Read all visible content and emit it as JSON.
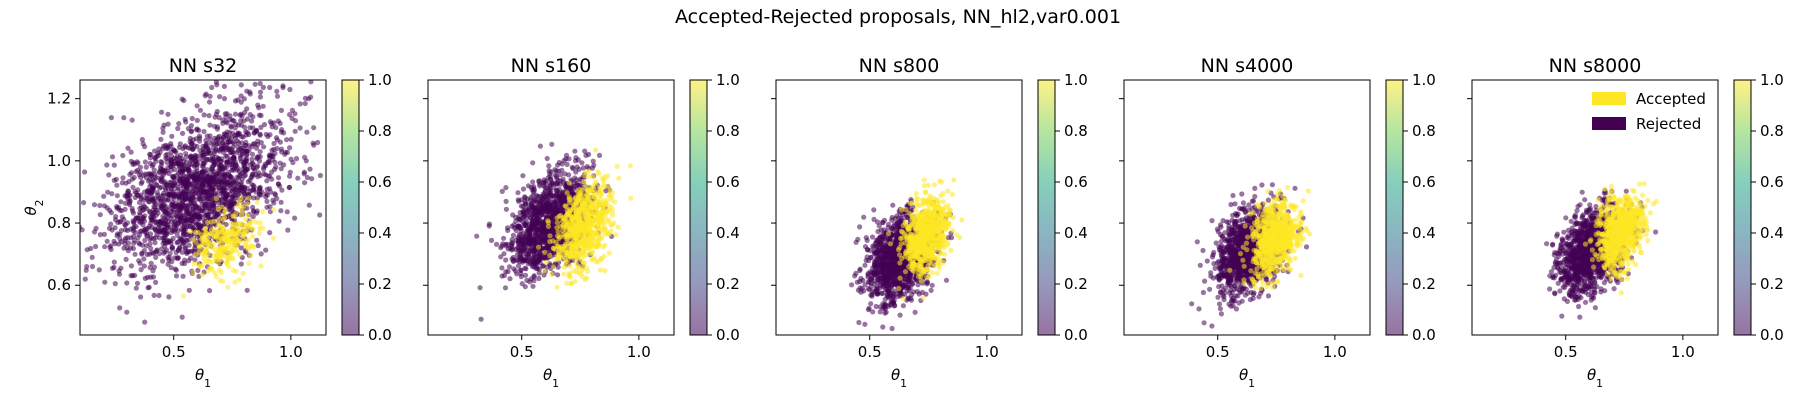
{
  "figure": {
    "suptitle": "Accepted-Rejected proposals, NN_hl2,var0.001"
  },
  "colors": {
    "accepted": "#fde725",
    "rejected": "#440154",
    "colormap": [
      "#440154",
      "#414487",
      "#2a788e",
      "#22a884",
      "#7ad151",
      "#fde725"
    ]
  },
  "chart_data": [
    {
      "type": "scatter",
      "title": "NN s32",
      "xlabel": "θ1",
      "ylabel": "θ2",
      "xlim": [
        0.1,
        1.15
      ],
      "ylim": [
        0.44,
        1.26
      ],
      "xticks": [
        0.5,
        1.0
      ],
      "xtick_labels": [
        "0.5",
        "1.0"
      ],
      "yticks": [
        0.6,
        0.8,
        1.0,
        1.2
      ],
      "ytick_labels": [
        "0.6",
        "0.8",
        "1.0",
        "1.2"
      ],
      "colorbar": {
        "ticks": [
          0.0,
          0.2,
          0.4,
          0.6,
          0.8,
          1.0
        ],
        "tick_labels": [
          "0.0",
          "0.2",
          "0.4",
          "0.6",
          "0.8",
          "1.0"
        ]
      },
      "series": [
        {
          "name": "Rejected",
          "color": "#440154",
          "cloud": {
            "center": [
              0.6,
              0.9
            ],
            "spread": [
              0.19,
              0.13
            ],
            "corr": 0.45,
            "count": 1900
          }
        },
        {
          "name": "Accepted",
          "color": "#fde725",
          "cloud": {
            "center": [
              0.72,
              0.74
            ],
            "spread": [
              0.07,
              0.06
            ],
            "corr": 0.3,
            "count": 260
          }
        }
      ]
    },
    {
      "type": "scatter",
      "title": "NN s160",
      "xlabel": "θ1",
      "ylabel": "",
      "xlim": [
        0.1,
        1.15
      ],
      "ylim": [
        0.44,
        1.26
      ],
      "xticks": [
        0.5,
        1.0
      ],
      "xtick_labels": [
        "0.5",
        "1.0"
      ],
      "yticks": [
        0.6,
        0.8,
        1.0,
        1.2
      ],
      "ytick_labels": [],
      "colorbar": {
        "ticks": [
          0.0,
          0.2,
          0.4,
          0.6,
          0.8,
          1.0
        ],
        "tick_labels": [
          "0.0",
          "0.2",
          "0.4",
          "0.6",
          "0.8",
          "1.0"
        ]
      },
      "series": [
        {
          "name": "Rejected",
          "color": "#440154",
          "cloud": {
            "center": [
              0.62,
              0.8
            ],
            "spread": [
              0.09,
              0.08
            ],
            "corr": 0.45,
            "count": 1300
          }
        },
        {
          "name": "Accepted",
          "color": "#fde725",
          "cloud": {
            "center": [
              0.76,
              0.79
            ],
            "spread": [
              0.06,
              0.07
            ],
            "corr": 0.35,
            "count": 650
          }
        }
      ]
    },
    {
      "type": "scatter",
      "title": "NN s800",
      "xlabel": "θ1",
      "ylabel": "",
      "xlim": [
        0.1,
        1.15
      ],
      "ylim": [
        0.44,
        1.26
      ],
      "xticks": [
        0.5,
        1.0
      ],
      "xtick_labels": [
        "0.5",
        "1.0"
      ],
      "yticks": [
        0.6,
        0.8,
        1.0,
        1.2
      ],
      "ytick_labels": [],
      "colorbar": {
        "ticks": [
          0.0,
          0.2,
          0.4,
          0.6,
          0.8,
          1.0
        ],
        "tick_labels": [
          "0.0",
          "0.2",
          "0.4",
          "0.6",
          "0.8",
          "1.0"
        ]
      },
      "series": [
        {
          "name": "Rejected",
          "color": "#440154",
          "cloud": {
            "center": [
              0.63,
              0.69
            ],
            "spread": [
              0.07,
              0.07
            ],
            "corr": 0.3,
            "count": 1200
          }
        },
        {
          "name": "Accepted",
          "color": "#fde725",
          "cloud": {
            "center": [
              0.74,
              0.76
            ],
            "spread": [
              0.05,
              0.06
            ],
            "corr": 0.3,
            "count": 700
          }
        }
      ]
    },
    {
      "type": "scatter",
      "title": "NN s4000",
      "xlabel": "θ1",
      "ylabel": "",
      "xlim": [
        0.1,
        1.15
      ],
      "ylim": [
        0.44,
        1.26
      ],
      "xticks": [
        0.5,
        1.0
      ],
      "xtick_labels": [
        "0.5",
        "1.0"
      ],
      "yticks": [
        0.6,
        0.8,
        1.0,
        1.2
      ],
      "ytick_labels": [],
      "colorbar": {
        "ticks": [
          0.0,
          0.2,
          0.4,
          0.6,
          0.8,
          1.0
        ],
        "tick_labels": [
          "0.0",
          "0.2",
          "0.4",
          "0.6",
          "0.8",
          "1.0"
        ]
      },
      "series": [
        {
          "name": "Rejected",
          "color": "#440154",
          "cloud": {
            "center": [
              0.63,
              0.71
            ],
            "spread": [
              0.07,
              0.07
            ],
            "corr": 0.35,
            "count": 1200
          }
        },
        {
          "name": "Accepted",
          "color": "#fde725",
          "cloud": {
            "center": [
              0.74,
              0.75
            ],
            "spread": [
              0.05,
              0.06
            ],
            "corr": 0.3,
            "count": 700
          }
        }
      ]
    },
    {
      "type": "scatter",
      "title": "NN s8000",
      "xlabel": "θ1",
      "ylabel": "",
      "xlim": [
        0.1,
        1.15
      ],
      "ylim": [
        0.44,
        1.26
      ],
      "xticks": [
        0.5,
        1.0
      ],
      "xtick_labels": [
        "0.5",
        "1.0"
      ],
      "yticks": [
        0.6,
        0.8,
        1.0,
        1.2
      ],
      "ytick_labels": [],
      "legend": {
        "placement": "top-right",
        "entries": [
          "Accepted",
          "Rejected"
        ]
      },
      "colorbar": {
        "ticks": [
          0.0,
          0.2,
          0.4,
          0.6,
          0.8,
          1.0
        ],
        "tick_labels": [
          "0.0",
          "0.2",
          "0.4",
          "0.6",
          "0.8",
          "1.0"
        ]
      },
      "series": [
        {
          "name": "Rejected",
          "color": "#440154",
          "cloud": {
            "center": [
              0.61,
              0.71
            ],
            "spread": [
              0.07,
              0.07
            ],
            "corr": 0.35,
            "count": 1200
          }
        },
        {
          "name": "Accepted",
          "color": "#fde725",
          "cloud": {
            "center": [
              0.73,
              0.77
            ],
            "spread": [
              0.05,
              0.06
            ],
            "corr": 0.3,
            "count": 700
          }
        }
      ]
    }
  ]
}
